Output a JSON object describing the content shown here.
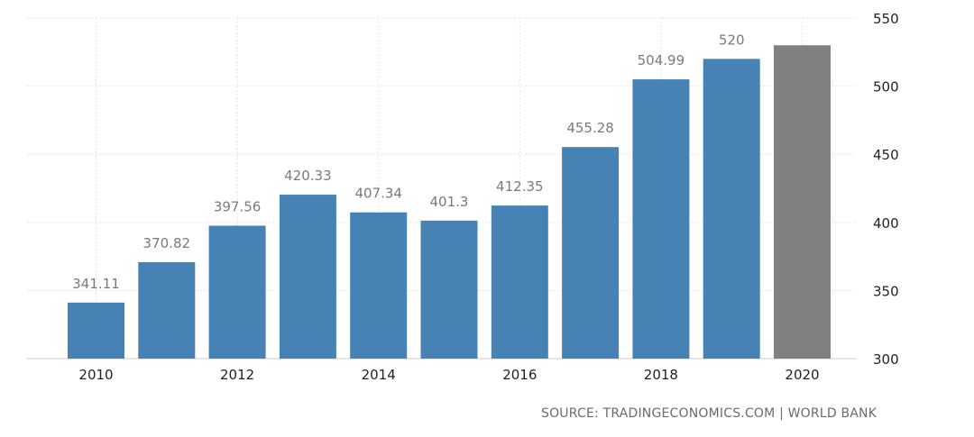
{
  "chart_data": {
    "type": "bar",
    "categories": [
      "2010",
      "2011",
      "2012",
      "2013",
      "2014",
      "2015",
      "2016",
      "2017",
      "2018",
      "2019",
      "2020"
    ],
    "values": [
      341.11,
      370.82,
      397.56,
      420.33,
      407.34,
      401.3,
      412.35,
      455.28,
      504.99,
      520,
      530
    ],
    "data_labels": [
      "341.11",
      "370.82",
      "397.56",
      "420.33",
      "407.34",
      "401.3",
      "412.35",
      "455.28",
      "504.99",
      "520",
      ""
    ],
    "x_tick_labels": [
      "2010",
      "",
      "2012",
      "",
      "2014",
      "",
      "2016",
      "",
      "2018",
      "",
      "2020"
    ],
    "y_ticks": [
      300,
      350,
      400,
      450,
      500,
      550
    ],
    "ylim": [
      300,
      550
    ],
    "y_axis_position": "right",
    "grid": true,
    "title": "",
    "xlabel": "",
    "ylabel": "",
    "colors": {
      "bar": "#4682b4",
      "forecast_bar": "#808080",
      "grid": "#e6e6e6"
    },
    "forecast_categories": [
      "2020"
    ]
  },
  "source": "SOURCE: TRADINGECONOMICS.COM | WORLD BANK"
}
